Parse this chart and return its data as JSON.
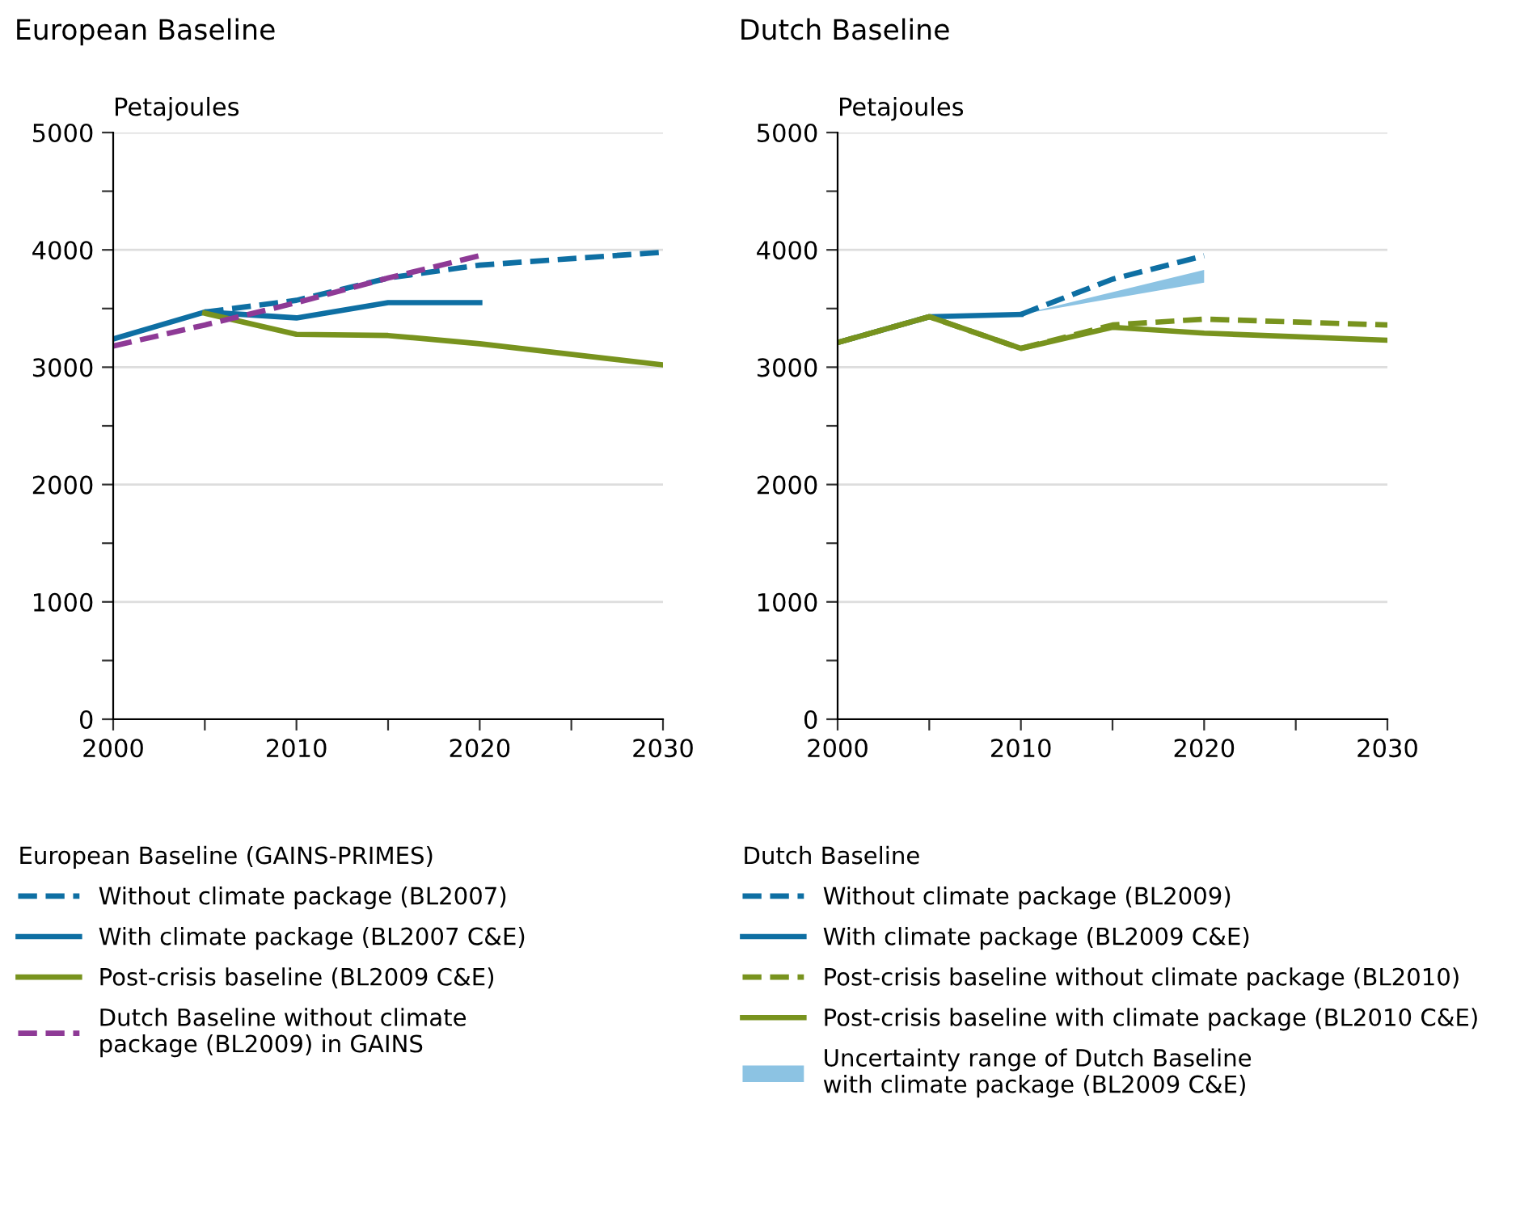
{
  "chart_data": [
    {
      "type": "line",
      "title": "European Baseline",
      "ylabel": "Petajoules",
      "legend_title": "European Baseline (GAINS-PRIMES)",
      "legend": "bottom",
      "grid": "y",
      "marker": "none",
      "xlim": [
        2000,
        2030
      ],
      "xticks": [
        2000,
        {
          "value": 2005,
          "label": null
        },
        2010,
        {
          "value": 2015,
          "label": null
        },
        2020,
        {
          "value": 2025,
          "label": null
        },
        2030
      ],
      "ylim": [
        0,
        5000
      ],
      "yticks": [
        0,
        {
          "value": 500,
          "label": null
        },
        1000,
        {
          "value": 1500,
          "label": null
        },
        2000,
        {
          "value": 2500,
          "label": null
        },
        3000,
        {
          "value": 3500,
          "label": null
        },
        4000,
        {
          "value": 4500,
          "label": null
        },
        5000
      ],
      "series": [
        {
          "name": "Without climate package (BL2007)",
          "color": "#0e6fa3",
          "line_style": "dashed",
          "x": [
            2005,
            2010,
            2015,
            2020,
            2030
          ],
          "values": [
            3470,
            3570,
            3760,
            3870,
            3980
          ]
        },
        {
          "name": "With climate package (BL2007 C&E)",
          "color": "#0e6fa3",
          "line_style": "solid",
          "x": [
            2000,
            2005,
            2010,
            2015,
            2020
          ],
          "values": [
            3240,
            3470,
            3420,
            3550,
            3550
          ]
        },
        {
          "name": "Post-crisis baseline (BL2009 C&E)",
          "color": "#78931e",
          "line_style": "solid",
          "x": [
            2005,
            2010,
            2015,
            2020,
            2030
          ],
          "values": [
            3460,
            3280,
            3270,
            3200,
            3020
          ]
        },
        {
          "name": "Dutch Baseline without climate\npackage (BL2009) in GAINS",
          "color": "#8e3a96",
          "line_style": "dashed",
          "x": [
            2000,
            2005,
            2010,
            2015,
            2020
          ],
          "values": [
            3180,
            3360,
            3550,
            3760,
            3950
          ]
        }
      ]
    },
    {
      "type": "line",
      "title": "Dutch Baseline",
      "ylabel": "Petajoules",
      "legend_title": "Dutch Baseline",
      "legend": "bottom",
      "grid": "y",
      "marker": "none",
      "xlim": [
        2000,
        2030
      ],
      "xticks": [
        2000,
        {
          "value": 2005,
          "label": null
        },
        2010,
        {
          "value": 2015,
          "label": null
        },
        2020,
        {
          "value": 2025,
          "label": null
        },
        2030
      ],
      "ylim": [
        0,
        5000
      ],
      "yticks": [
        0,
        {
          "value": 500,
          "label": null
        },
        1000,
        {
          "value": 1500,
          "label": null
        },
        2000,
        {
          "value": 2500,
          "label": null
        },
        3000,
        {
          "value": 3500,
          "label": null
        },
        4000,
        {
          "value": 4500,
          "label": null
        },
        5000
      ],
      "series": [
        {
          "name": "Without climate package (BL2009)",
          "color": "#0e6fa3",
          "line_style": "dashed",
          "x": [
            2010,
            2015,
            2020
          ],
          "values": [
            3450,
            3750,
            3950
          ]
        },
        {
          "name": "With climate package (BL2009 C&E)",
          "color": "#0e6fa3",
          "line_style": "solid",
          "x": [
            2000,
            2005,
            2010
          ],
          "values": [
            3210,
            3430,
            3450
          ]
        },
        {
          "name": "Post-crisis baseline without climate package (BL2010)",
          "color": "#78931e",
          "line_style": "dashed",
          "x": [
            2000,
            2005,
            2010,
            2015,
            2020,
            2030
          ],
          "values": [
            3210,
            3430,
            3160,
            3360,
            3410,
            3360
          ]
        },
        {
          "name": "Post-crisis baseline with climate package (BL2010 C&E)",
          "color": "#78931e",
          "line_style": "solid",
          "x": [
            2000,
            2005,
            2010,
            2015,
            2020,
            2030
          ],
          "values": [
            3210,
            3430,
            3160,
            3340,
            3290,
            3230
          ]
        },
        {
          "name": "Uncertainty range of Dutch Baseline\nwith climate package (BL2009 C&E)",
          "type": "area",
          "color": "#8cc3e3",
          "x": [
            2010,
            2020
          ],
          "values": [
            null,
            null
          ],
          "lower": [
            3450,
            3720
          ],
          "upper": [
            3450,
            3830
          ]
        }
      ]
    }
  ]
}
